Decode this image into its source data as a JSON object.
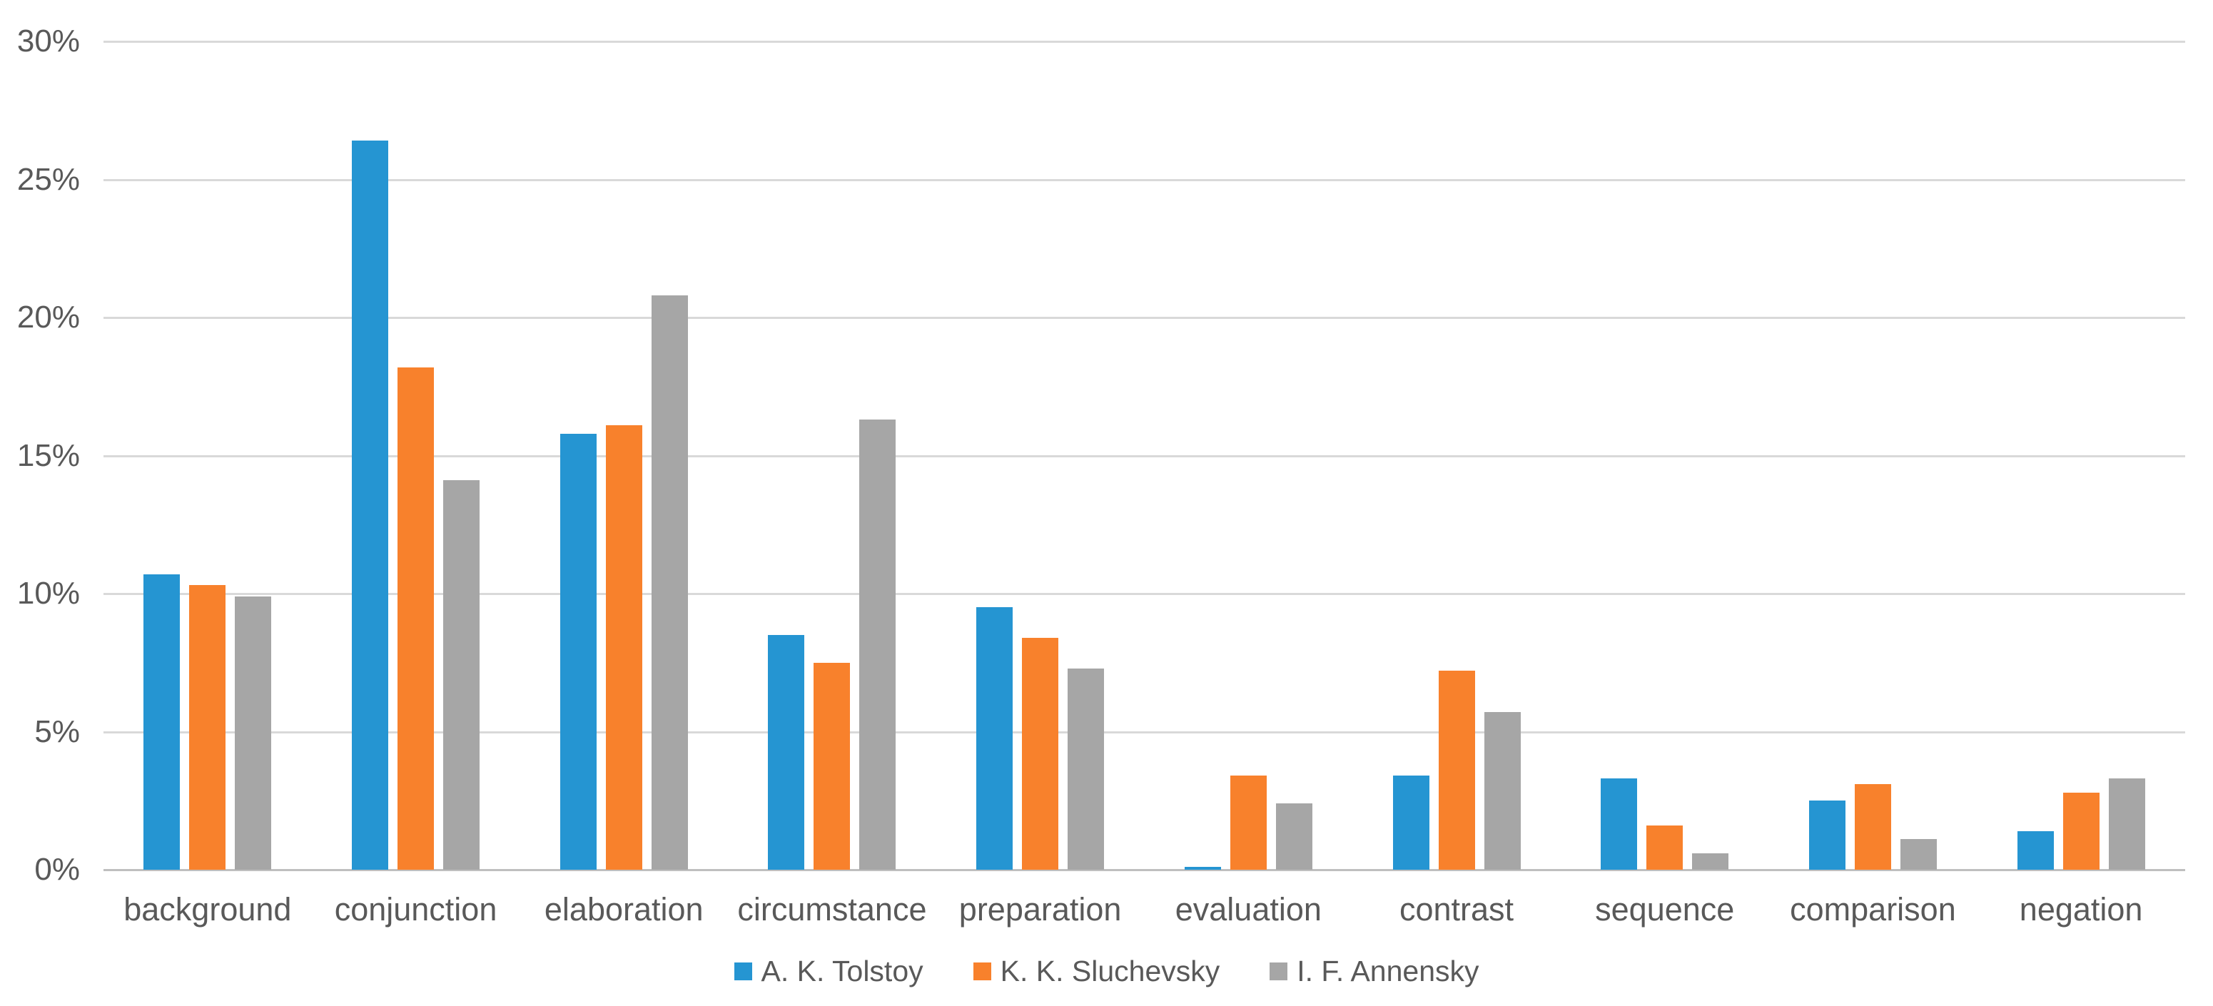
{
  "chart_data": {
    "type": "bar",
    "title": "",
    "xlabel": "",
    "ylabel": "",
    "categories": [
      "background",
      "conjunction",
      "elaboration",
      "circumstance",
      "preparation",
      "evaluation",
      "contrast",
      "sequence",
      "comparison",
      "negation"
    ],
    "series": [
      {
        "name": "A. K. Tolstoy",
        "color": "#2595d2",
        "values": [
          10.7,
          26.4,
          15.8,
          8.5,
          9.5,
          0.1,
          3.4,
          3.3,
          2.5,
          1.4
        ]
      },
      {
        "name": "K. K. Sluchevsky",
        "color": "#f8812c",
        "values": [
          10.3,
          18.2,
          16.1,
          7.5,
          8.4,
          3.4,
          7.2,
          1.6,
          3.1,
          2.8
        ]
      },
      {
        "name": "I. F. Annensky",
        "color": "#a6a6a6",
        "values": [
          9.9,
          14.1,
          20.8,
          16.3,
          7.3,
          2.4,
          5.7,
          0.6,
          1.1,
          3.3
        ]
      }
    ],
    "ylim": [
      0,
      30
    ],
    "ytick_step": 5,
    "ytick_labels": [
      "0%",
      "5%",
      "10%",
      "15%",
      "20%",
      "25%",
      "30%"
    ],
    "grid": "horizontal",
    "legend_position": "bottom"
  },
  "colors": {
    "background": "#ffffff",
    "gridline": "#d9d9d9",
    "axis_line": "#bfbfbf",
    "tick_text": "#595959"
  }
}
